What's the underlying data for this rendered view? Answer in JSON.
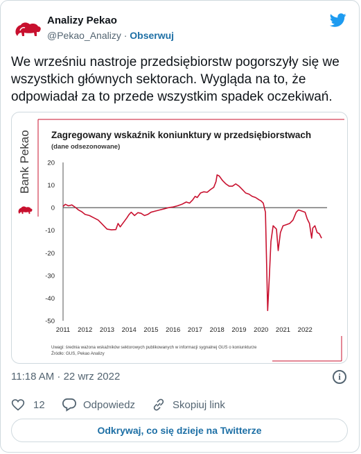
{
  "tweet": {
    "author_name": "Analizy Pekao",
    "handle": "@Pekao_Analizy",
    "separator": "·",
    "follow_label": "Obserwuj",
    "text": "We wrześniu nastroje przedsiębiorstw pogorszyły się we wszystkich głównych sektorach. Wygląda na to, że odpowiadał za to przede wszystkim spadek oczekiwań.",
    "timestamp": "11:18 AM · 22 wrz 2022",
    "info_glyph": "i",
    "likes": "12",
    "reply_label": "Odpowiedz",
    "copy_link_label": "Skopiuj link",
    "cta_label": "Odkrywaj, co się dzieje na Twitterze"
  },
  "media": {
    "brand": "Bank Pekao",
    "note1": "Uwagi: średnia ważona wskaźników sektorowych publikowanych  w informacji sygnalnej GUS o koniunkturze",
    "note2": "Źródło: GUS, Pekao Analizy"
  },
  "colors": {
    "brand_red": "#c8102e",
    "twitter_blue": "#1d9bf0",
    "link_blue": "#1d6fa5",
    "grey": "#536471"
  },
  "icons": [
    "bank-pekao-bison-logo",
    "twitter-bird-icon",
    "info-icon",
    "heart-icon",
    "reply-bubble-icon",
    "link-icon"
  ],
  "chart_data": {
    "type": "line",
    "title": "Zagregowany wskaźnik koniunktury w przedsiębiorstwach",
    "subtitle": "(dane odsezonowane)",
    "xlabel": "",
    "ylabel": "",
    "ylim": [
      -50,
      20
    ],
    "xlim": [
      2011,
      2022.75
    ],
    "yticks": [
      "20",
      "10",
      "0",
      "-10",
      "-20",
      "-30",
      "-40",
      "-50"
    ],
    "xticks": [
      "2011",
      "2012",
      "2013",
      "2014",
      "2015",
      "2016",
      "2017",
      "2018",
      "2019",
      "2020",
      "2021",
      "2022"
    ],
    "grid": false,
    "zero_line": true,
    "series": [
      {
        "color": "#c8102e",
        "points": [
          [
            2011.0,
            0.5
          ],
          [
            2011.1,
            1.5
          ],
          [
            2011.25,
            0.8
          ],
          [
            2011.4,
            1.2
          ],
          [
            2011.55,
            0.2
          ],
          [
            2011.7,
            -1.0
          ],
          [
            2011.85,
            -1.8
          ],
          [
            2012.0,
            -3.0
          ],
          [
            2012.2,
            -3.5
          ],
          [
            2012.4,
            -4.5
          ],
          [
            2012.6,
            -5.5
          ],
          [
            2012.75,
            -7.0
          ],
          [
            2012.9,
            -8.5
          ],
          [
            2013.0,
            -9.5
          ],
          [
            2013.2,
            -9.8
          ],
          [
            2013.4,
            -9.7
          ],
          [
            2013.5,
            -7.0
          ],
          [
            2013.6,
            -8.5
          ],
          [
            2013.75,
            -6.5
          ],
          [
            2013.9,
            -4.5
          ],
          [
            2014.0,
            -3.0
          ],
          [
            2014.1,
            -2.0
          ],
          [
            2014.25,
            -3.5
          ],
          [
            2014.4,
            -2.2
          ],
          [
            2014.55,
            -2.5
          ],
          [
            2014.7,
            -3.5
          ],
          [
            2014.85,
            -3.0
          ],
          [
            2015.0,
            -2.0
          ],
          [
            2015.2,
            -1.5
          ],
          [
            2015.4,
            -1.0
          ],
          [
            2015.6,
            -0.5
          ],
          [
            2015.8,
            0.0
          ],
          [
            2016.0,
            0.3
          ],
          [
            2016.2,
            0.8
          ],
          [
            2016.4,
            1.5
          ],
          [
            2016.6,
            2.5
          ],
          [
            2016.75,
            2.0
          ],
          [
            2016.9,
            3.5
          ],
          [
            2017.0,
            5.0
          ],
          [
            2017.1,
            4.5
          ],
          [
            2017.25,
            6.5
          ],
          [
            2017.4,
            7.0
          ],
          [
            2017.55,
            6.8
          ],
          [
            2017.7,
            8.0
          ],
          [
            2017.85,
            9.0
          ],
          [
            2017.95,
            11.5
          ],
          [
            2018.0,
            14.5
          ],
          [
            2018.1,
            14.0
          ],
          [
            2018.25,
            12.0
          ],
          [
            2018.4,
            10.5
          ],
          [
            2018.55,
            9.5
          ],
          [
            2018.7,
            9.5
          ],
          [
            2018.85,
            10.5
          ],
          [
            2019.0,
            9.5
          ],
          [
            2019.15,
            8.0
          ],
          [
            2019.3,
            6.5
          ],
          [
            2019.45,
            6.0
          ],
          [
            2019.6,
            5.0
          ],
          [
            2019.75,
            4.5
          ],
          [
            2019.9,
            3.5
          ],
          [
            2020.0,
            3.0
          ],
          [
            2020.1,
            2.0
          ],
          [
            2020.2,
            -2.0
          ],
          [
            2020.3,
            -45.5
          ],
          [
            2020.38,
            -30.0
          ],
          [
            2020.45,
            -15.0
          ],
          [
            2020.55,
            -8.0
          ],
          [
            2020.7,
            -9.5
          ],
          [
            2020.78,
            -19.0
          ],
          [
            2020.88,
            -11.0
          ],
          [
            2021.0,
            -8.0
          ],
          [
            2021.15,
            -7.5
          ],
          [
            2021.3,
            -7.0
          ],
          [
            2021.45,
            -5.5
          ],
          [
            2021.6,
            -2.0
          ],
          [
            2021.7,
            -1.0
          ],
          [
            2021.85,
            -1.5
          ],
          [
            2022.0,
            -2.0
          ],
          [
            2022.1,
            -5.0
          ],
          [
            2022.2,
            -7.0
          ],
          [
            2022.3,
            -13.5
          ],
          [
            2022.35,
            -9.0
          ],
          [
            2022.45,
            -8.0
          ],
          [
            2022.55,
            -11.0
          ],
          [
            2022.65,
            -11.5
          ],
          [
            2022.75,
            -13.5
          ]
        ]
      }
    ]
  }
}
